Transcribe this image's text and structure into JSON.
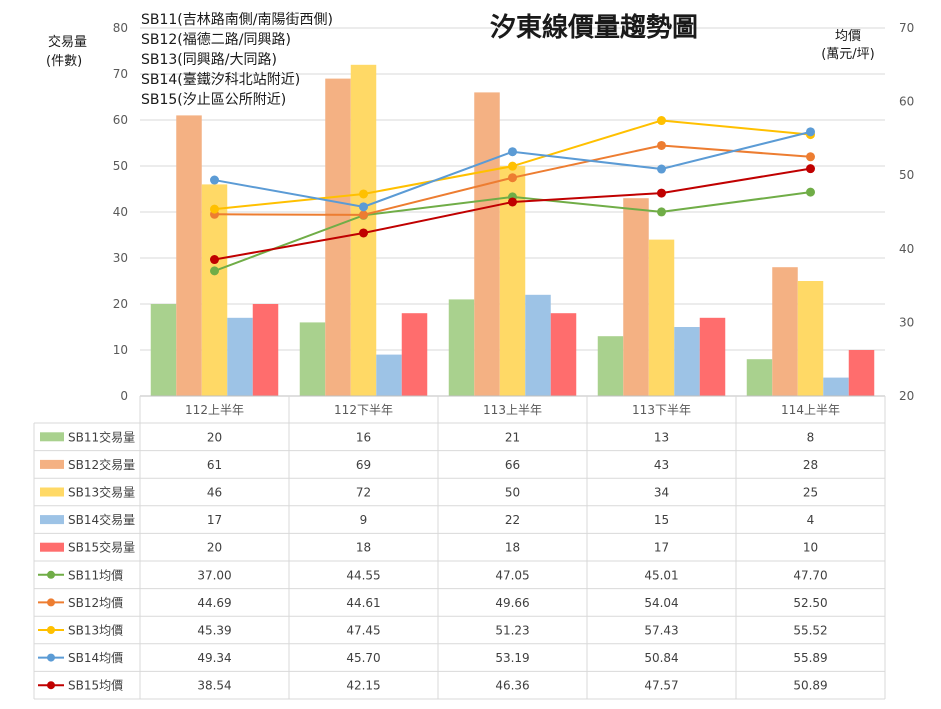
{
  "chart_data": {
    "type": "bar",
    "title": "汐東線價量趨勢圖",
    "station_notes": [
      "SB11(吉林路南側/南陽街西側)",
      "SB12(福德二路/同興路)",
      "SB13(同興路/大同路)",
      "SB14(臺鐵汐科北站附近)",
      "SB15(汐止區公所附近)"
    ],
    "ylabel_left": [
      "交易量",
      "(件數)"
    ],
    "ylabel_right": [
      "均價",
      "(萬元/坪)"
    ],
    "ylim_left": [
      0,
      80
    ],
    "yticks_left": [
      0,
      10,
      20,
      30,
      40,
      50,
      60,
      70,
      80
    ],
    "ylim_right": [
      20,
      70
    ],
    "yticks_right": [
      20,
      30,
      40,
      50,
      60,
      70
    ],
    "grid": true,
    "categories": [
      "112上半年",
      "112下半年",
      "113上半年",
      "113下半年",
      "114上半年"
    ],
    "bar_series": [
      {
        "name": "SB11交易量",
        "color": "#a9d18e",
        "values": [
          20,
          16,
          21,
          13,
          8
        ]
      },
      {
        "name": "SB12交易量",
        "color": "#f4b183",
        "values": [
          61,
          69,
          66,
          43,
          28
        ]
      },
      {
        "name": "SB13交易量",
        "color": "#ffd966",
        "values": [
          46,
          72,
          50,
          34,
          25
        ]
      },
      {
        "name": "SB14交易量",
        "color": "#9dc3e6",
        "values": [
          17,
          9,
          22,
          15,
          4
        ]
      },
      {
        "name": "SB15交易量",
        "color": "#ff6d6d",
        "values": [
          20,
          18,
          18,
          17,
          10
        ]
      }
    ],
    "line_series": [
      {
        "name": "SB11均價",
        "color": "#70ad47",
        "values": [
          "37.00",
          "44.55",
          "47.05",
          "45.01",
          "47.70"
        ]
      },
      {
        "name": "SB12均價",
        "color": "#ed7d31",
        "values": [
          "44.69",
          "44.61",
          "49.66",
          "54.04",
          "52.50"
        ]
      },
      {
        "name": "SB13均價",
        "color": "#ffc000",
        "values": [
          "45.39",
          "47.45",
          "51.23",
          "57.43",
          "55.52"
        ]
      },
      {
        "name": "SB14均價",
        "color": "#5b9bd5",
        "values": [
          "49.34",
          "45.70",
          "53.19",
          "50.84",
          "55.89"
        ]
      },
      {
        "name": "SB15均價",
        "color": "#c00000",
        "values": [
          "38.54",
          "42.15",
          "46.36",
          "47.57",
          "50.89"
        ]
      }
    ]
  }
}
